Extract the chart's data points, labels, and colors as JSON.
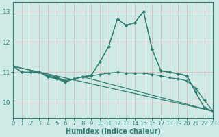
{
  "title": "",
  "xlabel": "Humidex (Indice chaleur)",
  "ylabel": "",
  "bg_color": "#ceeae6",
  "line_color": "#2e7d70",
  "grid_color_major": "#c0d8d4",
  "grid_color_minor": "#d8ecea",
  "xlim": [
    0,
    23
  ],
  "ylim": [
    9.5,
    13.3
  ],
  "xticks": [
    0,
    1,
    2,
    3,
    4,
    5,
    6,
    7,
    8,
    9,
    10,
    11,
    12,
    13,
    14,
    15,
    16,
    17,
    18,
    19,
    20,
    21,
    22,
    23
  ],
  "yticks": [
    10,
    11,
    12,
    13
  ],
  "lines": [
    {
      "x": [
        0,
        1,
        2,
        3,
        4,
        5,
        6,
        7,
        8,
        9,
        10,
        11,
        12,
        13,
        14,
        15,
        16,
        17,
        18,
        19,
        20,
        21,
        22,
        23
      ],
      "y": [
        11.2,
        11.0,
        11.0,
        11.0,
        10.85,
        10.8,
        10.7,
        10.78,
        10.85,
        10.9,
        11.35,
        11.85,
        12.75,
        12.55,
        12.63,
        13.0,
        11.75,
        11.05,
        11.0,
        10.95,
        10.88,
        10.35,
        9.83,
        9.72
      ]
    },
    {
      "x": [
        0,
        3,
        4,
        5,
        6,
        7,
        8,
        9,
        10,
        11,
        12,
        13,
        14,
        15,
        16,
        17,
        18,
        19,
        20,
        21,
        22,
        23
      ],
      "y": [
        11.2,
        11.0,
        10.85,
        10.78,
        10.68,
        10.78,
        10.85,
        10.9,
        11.35,
        11.85,
        12.75,
        12.55,
        12.63,
        13.0,
        11.75,
        11.05,
        11.0,
        10.95,
        10.88,
        10.35,
        9.83,
        9.72
      ]
    },
    {
      "x": [
        0,
        1,
        2,
        3,
        4,
        5,
        6,
        7,
        8,
        23
      ],
      "y": [
        11.2,
        11.0,
        11.0,
        11.02,
        10.9,
        10.85,
        10.72,
        10.78,
        10.85,
        9.72
      ]
    },
    {
      "x": [
        0,
        23
      ],
      "y": [
        11.2,
        9.72
      ]
    },
    {
      "x": [
        0,
        1,
        2,
        3,
        4,
        5,
        6,
        7,
        8,
        9,
        10,
        11,
        12,
        13,
        14,
        15,
        16,
        17,
        18,
        19,
        20,
        21,
        22,
        23
      ],
      "y": [
        11.2,
        11.0,
        11.0,
        11.02,
        10.87,
        10.82,
        10.72,
        10.78,
        10.85,
        10.88,
        10.93,
        10.97,
        11.0,
        10.97,
        10.97,
        10.97,
        10.93,
        10.88,
        10.82,
        10.78,
        10.72,
        10.48,
        10.08,
        9.72
      ]
    }
  ]
}
